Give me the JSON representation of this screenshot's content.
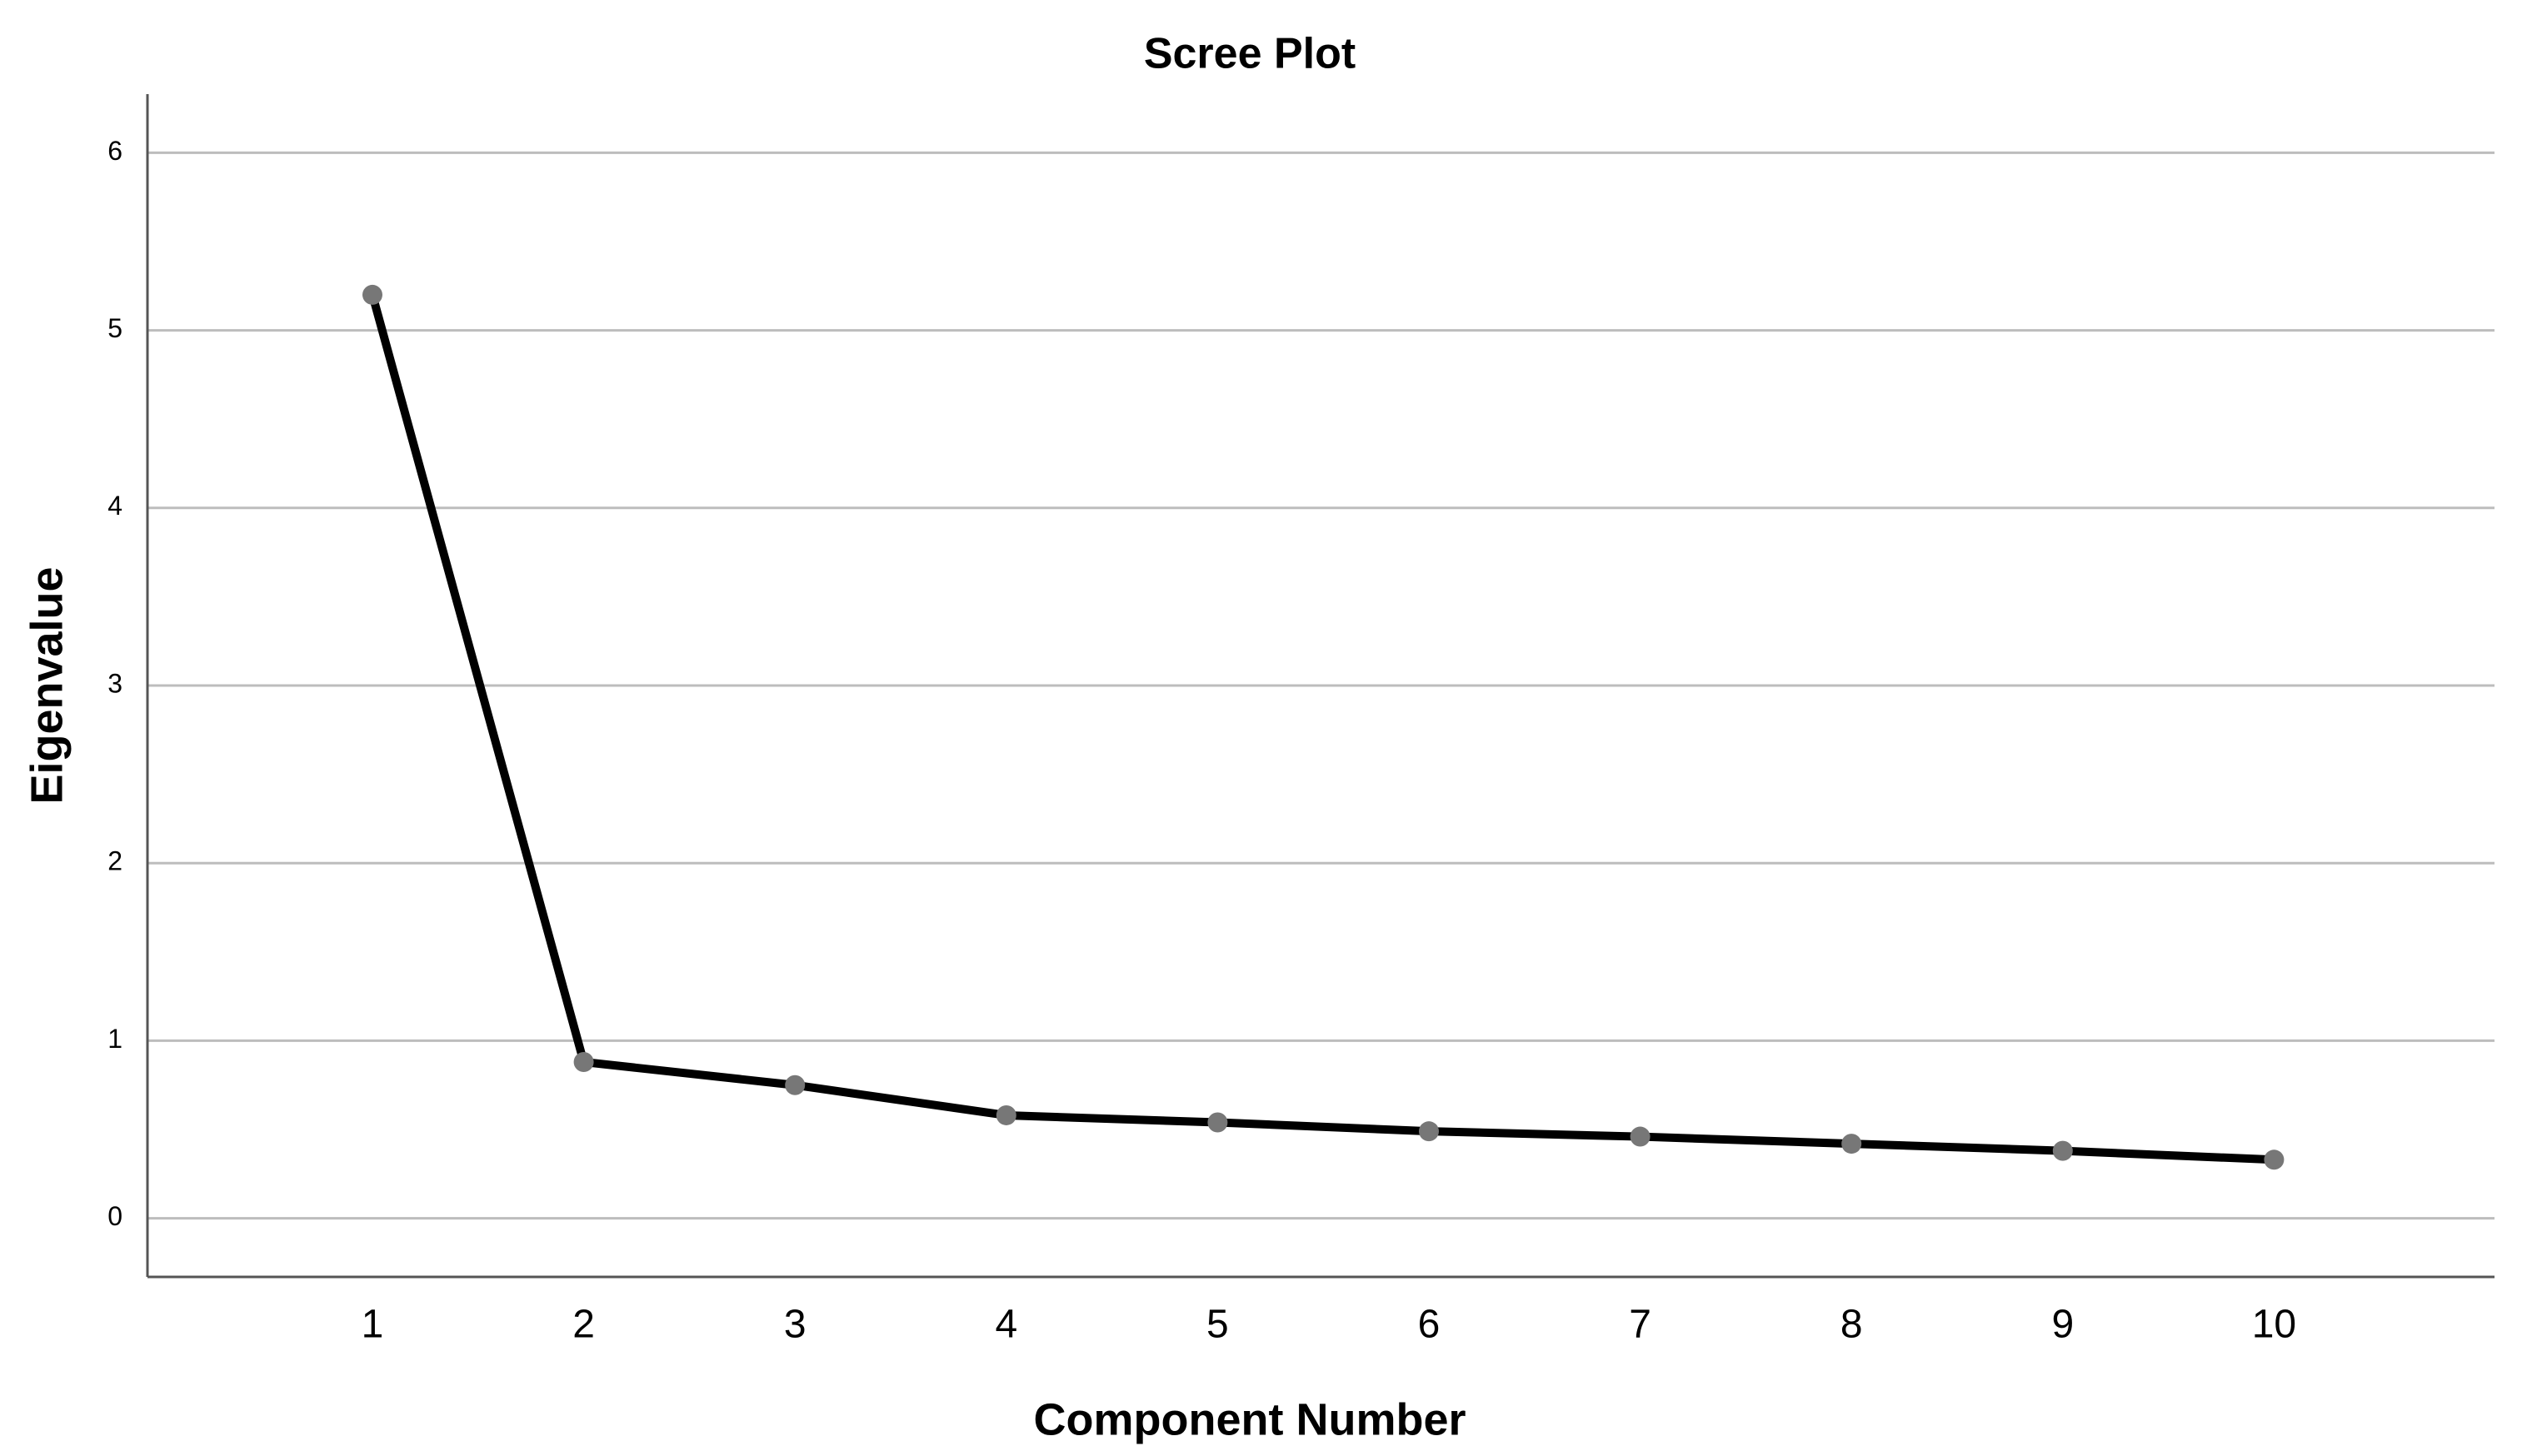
{
  "chart_data": {
    "type": "line",
    "title": "Scree Plot",
    "x_label": "Component Number",
    "y_label": "Eigenvalue",
    "categories": [
      "1",
      "2",
      "3",
      "4",
      "5",
      "6",
      "7",
      "8",
      "9",
      "10"
    ],
    "series": [
      {
        "color": "#000000",
        "marker_color": "#777777",
        "values": [
          5.2,
          0.88,
          0.75,
          0.58,
          0.54,
          0.49,
          0.46,
          0.42,
          0.38,
          0.33
        ]
      }
    ],
    "ylim": [
      -0.33,
      6.33
    ],
    "yticks": [
      0,
      1,
      2,
      3,
      4,
      5,
      6
    ],
    "grid": true
  }
}
